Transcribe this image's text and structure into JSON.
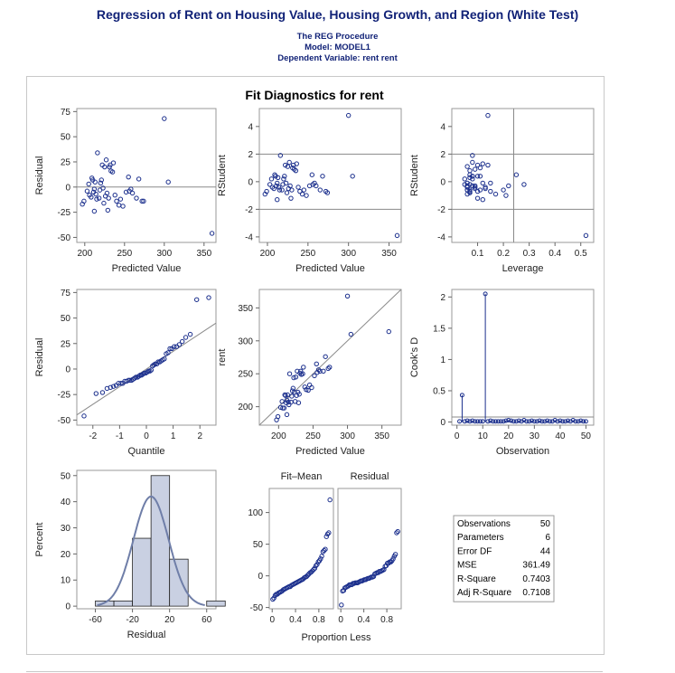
{
  "header": {
    "title": "Regression of Rent on Housing Value, Housing Growth, and Region (White Test)",
    "procedure": "The REG Procedure",
    "model": "Model: MODEL1",
    "dependent": "Dependent Variable: rent rent"
  },
  "figure_title": "Fit Diagnostics for rent",
  "colors": {
    "marker": "#1a2e8c",
    "ref_line": "#8a8a8a",
    "hist_fill": "#c9d0e2",
    "curve": "#6f7ea8"
  },
  "chart_data": [
    {
      "id": "resid-vs-pred",
      "type": "scatter",
      "xlabel": "Predicted Value",
      "ylabel": "Residual",
      "xlim": [
        190,
        365
      ],
      "ylim": [
        -55,
        78
      ],
      "xticks": [
        200,
        250,
        300,
        350
      ],
      "yticks": [
        -50,
        -25,
        0,
        25,
        50,
        75
      ],
      "hlines": [
        0
      ],
      "x": [
        197,
        199,
        203,
        205,
        206,
        208,
        209,
        210,
        211,
        212,
        212,
        213,
        214,
        215,
        216,
        218,
        219,
        220,
        221,
        222,
        223,
        224,
        225,
        226,
        227,
        228,
        229,
        230,
        231,
        232,
        233,
        235,
        236,
        238,
        240,
        243,
        245,
        248,
        252,
        255,
        256,
        258,
        260,
        265,
        268,
        272,
        274,
        300,
        305,
        360
      ],
      "y": [
        -17,
        -14,
        -4,
        3,
        -8,
        -10,
        9,
        7,
        -5,
        -2,
        -24,
        5,
        -7,
        -12,
        34,
        -11,
        -3,
        4,
        7,
        22,
        -1,
        -16,
        20,
        -9,
        27,
        -6,
        -23,
        -11,
        20,
        22,
        16,
        15,
        24,
        -8,
        -14,
        -18,
        -12,
        -19,
        -5,
        10,
        -4,
        -2,
        -6,
        -11,
        8,
        -14,
        -14,
        68,
        5,
        -46
      ]
    },
    {
      "id": "rstudent-vs-pred",
      "type": "scatter",
      "xlabel": "Predicted Value",
      "ylabel": "RStudent",
      "xlim": [
        190,
        365
      ],
      "ylim": [
        -4.4,
        5.3
      ],
      "xticks": [
        200,
        250,
        300,
        350
      ],
      "yticks": [
        -4,
        -2,
        0,
        2,
        4
      ],
      "hlines": [
        -2,
        2
      ],
      "x": [
        197,
        199,
        203,
        205,
        206,
        208,
        209,
        210,
        211,
        212,
        212,
        213,
        214,
        215,
        216,
        218,
        219,
        220,
        221,
        222,
        223,
        224,
        225,
        226,
        227,
        228,
        229,
        230,
        231,
        232,
        233,
        235,
        236,
        238,
        240,
        243,
        245,
        248,
        252,
        255,
        256,
        258,
        260,
        265,
        268,
        272,
        274,
        300,
        305,
        360
      ],
      "y": [
        -0.9,
        -0.7,
        -0.2,
        0.2,
        -0.4,
        -0.5,
        0.5,
        0.4,
        -0.3,
        -0.1,
        -1.3,
        0.3,
        -0.4,
        -0.6,
        1.9,
        -0.6,
        -0.2,
        0.2,
        0.4,
        1.2,
        -0.1,
        -0.8,
        1.1,
        -0.5,
        1.4,
        -0.3,
        -1.2,
        -0.6,
        1.0,
        1.2,
        0.9,
        0.8,
        1.3,
        -0.4,
        -0.7,
        -0.9,
        -0.6,
        -1.0,
        -0.3,
        0.5,
        -0.2,
        -0.1,
        -0.3,
        -0.6,
        0.4,
        -0.7,
        -0.8,
        4.8,
        0.4,
        -3.9
      ]
    },
    {
      "id": "rstudent-vs-leverage",
      "type": "scatter",
      "xlabel": "Leverage",
      "ylabel": "RStudent",
      "xlim": [
        0.0,
        0.55
      ],
      "ylim": [
        -4.4,
        5.3
      ],
      "xticks": [
        0.1,
        0.2,
        0.3,
        0.4,
        0.5
      ],
      "yticks": [
        -4,
        -2,
        0,
        2,
        4
      ],
      "hlines": [
        -2,
        2
      ],
      "vlines": [
        0.24
      ],
      "x": [
        0.06,
        0.07,
        0.05,
        0.08,
        0.06,
        0.09,
        0.07,
        0.1,
        0.08,
        0.06,
        0.12,
        0.07,
        0.09,
        0.11,
        0.08,
        0.06,
        0.07,
        0.05,
        0.08,
        0.1,
        0.12,
        0.07,
        0.06,
        0.13,
        0.08,
        0.09,
        0.1,
        0.06,
        0.11,
        0.14,
        0.09,
        0.07,
        0.12,
        0.13,
        0.15,
        0.17,
        0.2,
        0.21,
        0.22,
        0.25,
        0.28,
        0.15,
        0.06,
        0.07,
        0.08,
        0.1,
        0.07,
        0.14,
        0.11,
        0.52
      ],
      "y": [
        -0.9,
        -0.7,
        -0.2,
        0.2,
        -0.4,
        -0.5,
        0.5,
        0.4,
        -0.3,
        -0.1,
        -1.3,
        0.3,
        -0.4,
        -0.6,
        1.9,
        -0.6,
        -0.2,
        0.2,
        0.4,
        1.2,
        -0.1,
        -0.8,
        1.1,
        -0.5,
        1.4,
        -0.3,
        -1.2,
        -0.6,
        1.0,
        1.2,
        0.9,
        0.8,
        1.3,
        -0.4,
        -0.7,
        -0.9,
        -0.6,
        -1.0,
        -0.3,
        0.5,
        -0.2,
        -0.1,
        -0.3,
        -0.6,
        0.4,
        -0.7,
        -0.8,
        4.8,
        0.4,
        -3.9
      ]
    },
    {
      "id": "qq-plot",
      "type": "scatter",
      "xlabel": "Quantile",
      "ylabel": "Residual",
      "xlim": [
        -2.6,
        2.6
      ],
      "ylim": [
        -55,
        78
      ],
      "xticks": [
        -2,
        -1,
        0,
        1,
        2
      ],
      "yticks": [
        -50,
        -25,
        0,
        25,
        50,
        75
      ],
      "ref_line": {
        "x": [
          -2.6,
          2.6
        ],
        "y": [
          -45,
          45
        ]
      },
      "x": [
        -2.33,
        -1.88,
        -1.64,
        -1.47,
        -1.34,
        -1.23,
        -1.13,
        -1.04,
        -0.95,
        -0.88,
        -0.81,
        -0.74,
        -0.67,
        -0.61,
        -0.55,
        -0.5,
        -0.44,
        -0.39,
        -0.33,
        -0.28,
        -0.23,
        -0.18,
        -0.13,
        -0.08,
        -0.03,
        0.03,
        0.08,
        0.13,
        0.18,
        0.23,
        0.28,
        0.33,
        0.39,
        0.44,
        0.5,
        0.55,
        0.61,
        0.67,
        0.74,
        0.81,
        0.88,
        0.95,
        1.04,
        1.13,
        1.23,
        1.34,
        1.47,
        1.64,
        1.88,
        2.33
      ],
      "y": [
        -46,
        -24,
        -23,
        -19,
        -18,
        -17,
        -16,
        -14,
        -14,
        -14,
        -12,
        -12,
        -11,
        -11,
        -11,
        -10,
        -9,
        -8,
        -8,
        -7,
        -6,
        -6,
        -5,
        -4,
        -4,
        -3,
        -2,
        -2,
        -1,
        3,
        4,
        5,
        5,
        7,
        7,
        8,
        9,
        10,
        15,
        16,
        20,
        20,
        22,
        22,
        24,
        27,
        31,
        34,
        68,
        70
      ]
    },
    {
      "id": "rent-vs-pred",
      "type": "scatter",
      "xlabel": "Predicted Value",
      "ylabel": "rent",
      "xlim": [
        172,
        378
      ],
      "ylim": [
        172,
        378
      ],
      "xticks": [
        200,
        250,
        300,
        350
      ],
      "yticks": [
        200,
        250,
        300,
        350
      ],
      "ref_line": {
        "x": [
          172,
          378
        ],
        "y": [
          172,
          378
        ]
      },
      "x": [
        197,
        199,
        203,
        205,
        206,
        208,
        209,
        210,
        211,
        212,
        212,
        213,
        214,
        215,
        216,
        218,
        219,
        220,
        221,
        222,
        223,
        224,
        225,
        226,
        227,
        228,
        229,
        230,
        231,
        232,
        233,
        235,
        236,
        238,
        240,
        243,
        245,
        248,
        252,
        255,
        256,
        258,
        260,
        265,
        268,
        272,
        274,
        300,
        305,
        360
      ],
      "y": [
        180,
        185,
        199,
        208,
        198,
        198,
        218,
        217,
        206,
        210,
        188,
        218,
        207,
        203,
        250,
        207,
        216,
        224,
        228,
        244,
        222,
        208,
        245,
        217,
        254,
        222,
        206,
        219,
        251,
        254,
        249,
        250,
        260,
        230,
        226,
        225,
        233,
        229,
        247,
        265,
        252,
        256,
        254,
        254,
        276,
        258,
        260,
        368,
        310,
        314
      ]
    },
    {
      "id": "cooks-d",
      "type": "needle",
      "xlabel": "Observation",
      "ylabel": "Cook's D",
      "xlim": [
        -2,
        53
      ],
      "ylim": [
        -0.05,
        2.12
      ],
      "xticks": [
        0,
        10,
        20,
        30,
        40,
        50
      ],
      "yticks": [
        0.0,
        0.5,
        1.0,
        1.5,
        2.0
      ],
      "hlines": [
        0.08
      ],
      "x": [
        1,
        2,
        3,
        4,
        5,
        6,
        7,
        8,
        9,
        10,
        11,
        12,
        13,
        14,
        15,
        16,
        17,
        18,
        19,
        20,
        21,
        22,
        23,
        24,
        25,
        26,
        27,
        28,
        29,
        30,
        31,
        32,
        33,
        34,
        35,
        36,
        37,
        38,
        39,
        40,
        41,
        42,
        43,
        44,
        45,
        46,
        47,
        48,
        49,
        50
      ],
      "y": [
        0.01,
        0.43,
        0.01,
        0.02,
        0.01,
        0.02,
        0.01,
        0.01,
        0.01,
        0.01,
        2.05,
        0.01,
        0.02,
        0.01,
        0.01,
        0.01,
        0.01,
        0.01,
        0.02,
        0.03,
        0.02,
        0.01,
        0.01,
        0.02,
        0.01,
        0.03,
        0.01,
        0.01,
        0.02,
        0.01,
        0.01,
        0.02,
        0.01,
        0.01,
        0.02,
        0.01,
        0.01,
        0.03,
        0.01,
        0.02,
        0.01,
        0.01,
        0.02,
        0.01,
        0.03,
        0.01,
        0.01,
        0.02,
        0.01,
        0.01
      ]
    },
    {
      "id": "residual-histogram",
      "type": "bar",
      "xlabel": "Residual",
      "ylabel": "Percent",
      "xlim": [
        -80,
        70
      ],
      "ylim": [
        -1,
        52
      ],
      "xticks": [
        -60,
        -20,
        20,
        60
      ],
      "yticks": [
        0,
        10,
        20,
        30,
        40,
        50
      ],
      "bin_edges": [
        -60,
        -40,
        -20,
        0,
        20,
        40,
        60,
        80
      ],
      "values": [
        2,
        2,
        26,
        50,
        18,
        0,
        2
      ],
      "density_curve": {
        "mean": 0,
        "sd": 19
      }
    },
    {
      "id": "fit-mean",
      "type": "scatter",
      "title": "Fit–Mean",
      "xlabel": "",
      "ylabel": "",
      "xlim": [
        -0.05,
        1.05
      ],
      "ylim": [
        -52,
        138
      ],
      "xticks": [
        0.0,
        0.4,
        0.8
      ],
      "yticks": [
        -50,
        0,
        50,
        100
      ],
      "x": [
        0.01,
        0.03,
        0.05,
        0.07,
        0.09,
        0.11,
        0.13,
        0.15,
        0.17,
        0.19,
        0.21,
        0.23,
        0.25,
        0.27,
        0.29,
        0.31,
        0.33,
        0.35,
        0.37,
        0.39,
        0.41,
        0.43,
        0.45,
        0.47,
        0.49,
        0.51,
        0.53,
        0.55,
        0.57,
        0.59,
        0.61,
        0.63,
        0.65,
        0.67,
        0.69,
        0.71,
        0.73,
        0.75,
        0.77,
        0.79,
        0.81,
        0.83,
        0.85,
        0.87,
        0.89,
        0.91,
        0.93,
        0.95,
        0.97,
        0.99
      ],
      "y": [
        -37,
        -35,
        -31,
        -29,
        -29,
        -27,
        -26,
        -25,
        -24,
        -22,
        -21,
        -20,
        -19,
        -18,
        -17,
        -17,
        -15,
        -14,
        -13,
        -12,
        -11,
        -10,
        -9,
        -8,
        -7,
        -6,
        -5,
        -3,
        -2,
        -1,
        1,
        3,
        5,
        6,
        8,
        10,
        12,
        16,
        18,
        22,
        24,
        27,
        31,
        38,
        40,
        42,
        62,
        66,
        68,
        120
      ]
    },
    {
      "id": "residual-spread",
      "type": "scatter",
      "title": "Residual",
      "xlabel": "",
      "ylabel": "",
      "xlim": [
        -0.05,
        1.05
      ],
      "ylim": [
        -52,
        138
      ],
      "xticks": [
        0.0,
        0.4,
        0.8
      ],
      "yticks": [],
      "x": [
        0.01,
        0.03,
        0.05,
        0.07,
        0.09,
        0.11,
        0.13,
        0.15,
        0.17,
        0.19,
        0.21,
        0.23,
        0.25,
        0.27,
        0.29,
        0.31,
        0.33,
        0.35,
        0.37,
        0.39,
        0.41,
        0.43,
        0.45,
        0.47,
        0.49,
        0.51,
        0.53,
        0.55,
        0.57,
        0.59,
        0.61,
        0.63,
        0.65,
        0.67,
        0.69,
        0.71,
        0.73,
        0.75,
        0.77,
        0.79,
        0.81,
        0.83,
        0.85,
        0.87,
        0.89,
        0.91,
        0.93,
        0.95,
        0.97,
        0.99
      ],
      "y": [
        -46,
        -24,
        -23,
        -19,
        -18,
        -17,
        -16,
        -14,
        -14,
        -14,
        -12,
        -12,
        -11,
        -11,
        -11,
        -10,
        -9,
        -8,
        -8,
        -7,
        -6,
        -6,
        -5,
        -4,
        -4,
        -3,
        -2,
        -2,
        -1,
        3,
        4,
        5,
        5,
        7,
        7,
        8,
        9,
        10,
        15,
        16,
        20,
        20,
        22,
        22,
        24,
        27,
        31,
        34,
        68,
        70
      ]
    }
  ],
  "spread_xlabel": "Proportion Less",
  "stats": [
    {
      "label": "Observations",
      "value": "50"
    },
    {
      "label": "Parameters",
      "value": "6"
    },
    {
      "label": "Error DF",
      "value": "44"
    },
    {
      "label": "MSE",
      "value": "361.49"
    },
    {
      "label": "R-Square",
      "value": "0.7403"
    },
    {
      "label": "Adj R-Square",
      "value": "0.7108"
    }
  ]
}
